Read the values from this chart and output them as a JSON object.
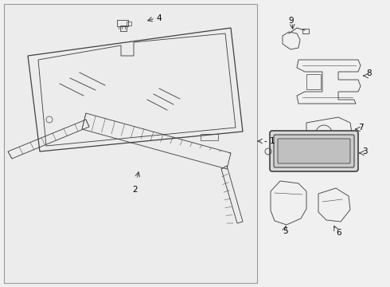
{
  "background_color": "#f0f0f0",
  "panel_color": "#e8e8e8",
  "line_color": "#404040",
  "label_color": "#000000",
  "fig_width": 4.9,
  "fig_height": 3.6,
  "dpi": 100
}
